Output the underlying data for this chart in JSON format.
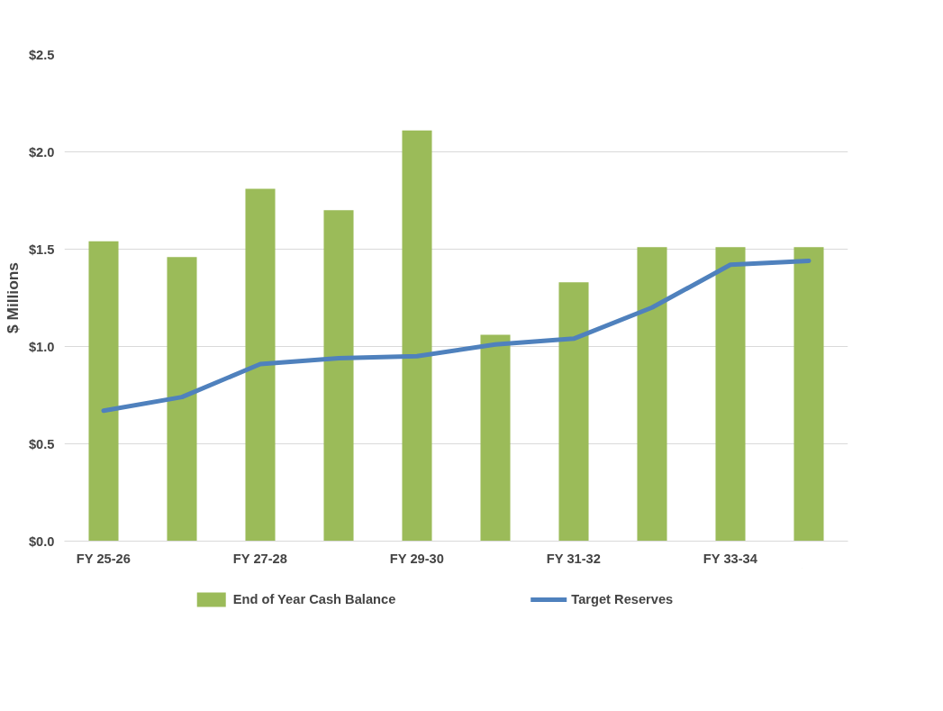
{
  "chart_data": {
    "type": "bar",
    "ylabel": "$ Millions",
    "categories": [
      "FY 25-26",
      null,
      "FY 27-28",
      null,
      "FY 29-30",
      null,
      "FY 31-32",
      null,
      "FY 33-34",
      null
    ],
    "series": [
      {
        "name": "End of Year Cash Balance",
        "color": "#9bbb59",
        "values": [
          1.54,
          1.46,
          1.81,
          1.7,
          2.11,
          1.06,
          1.33,
          1.51,
          1.51,
          1.51
        ]
      },
      {
        "name": "Target Reserves",
        "type": "line",
        "color": "#4f81bd",
        "values": [
          0.67,
          0.74,
          0.91,
          0.94,
          0.95,
          1.01,
          1.04,
          1.2,
          1.42,
          1.44
        ]
      }
    ],
    "ylim": [
      0,
      2.5
    ],
    "yticks": [
      {
        "value": 0,
        "label": "$0.0"
      },
      {
        "value": 0.5,
        "label": "$0.5"
      },
      {
        "value": 1.0,
        "label": "$1.0"
      },
      {
        "value": 1.5,
        "label": "$1.5"
      },
      {
        "value": 2.0,
        "label": "$2.0"
      },
      {
        "value": 2.5,
        "label": "$2.5"
      }
    ],
    "grid": "y",
    "legend": "bottom"
  }
}
